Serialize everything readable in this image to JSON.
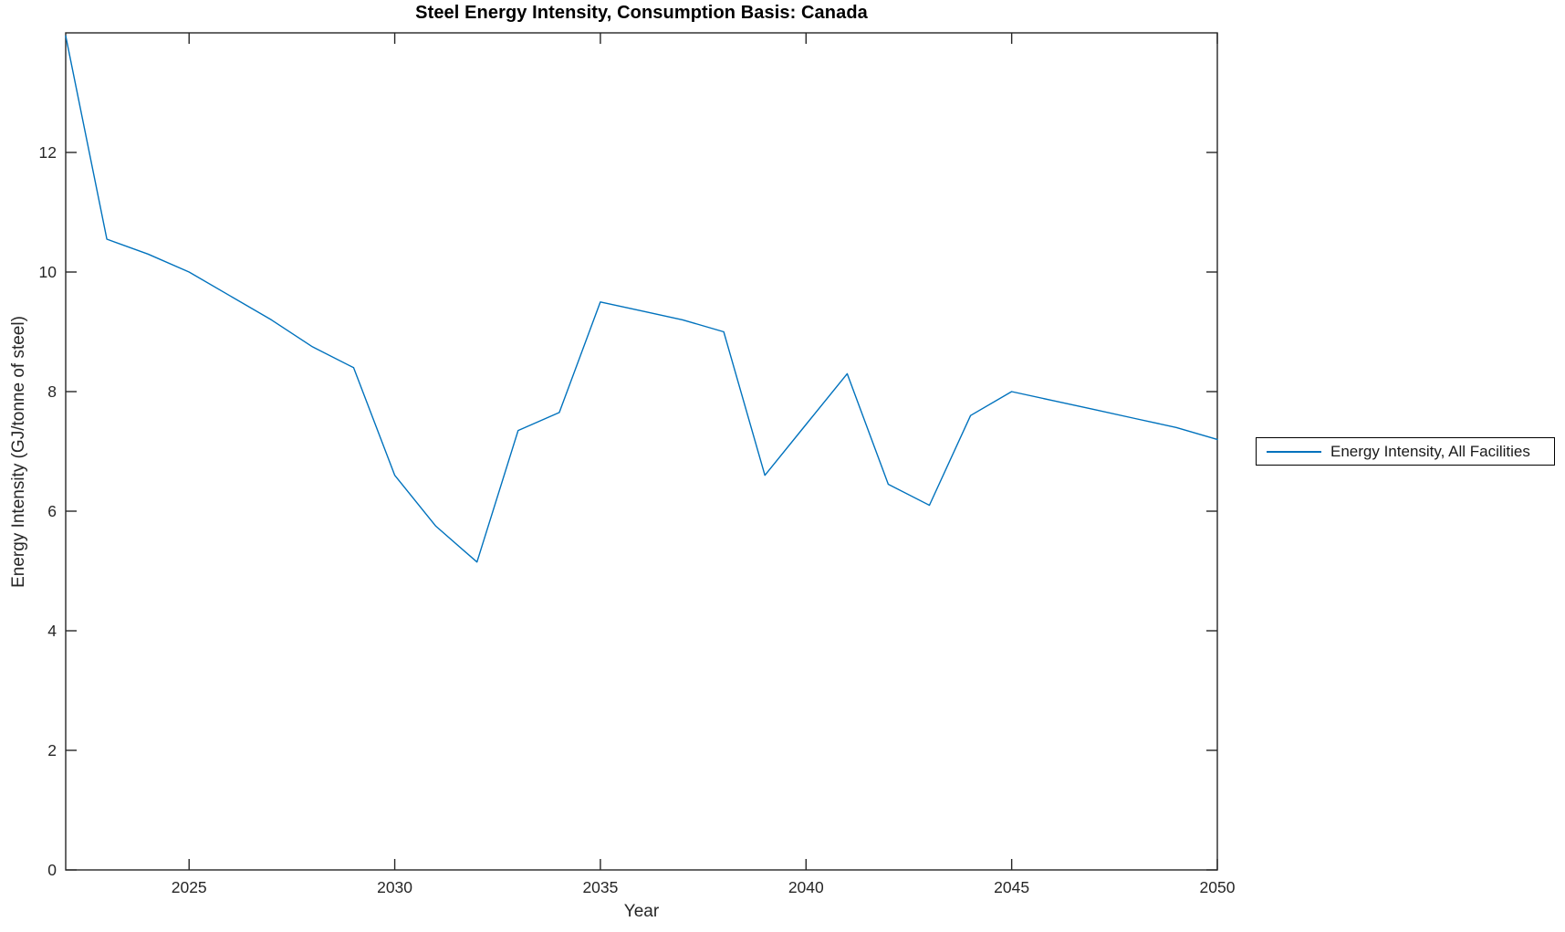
{
  "chart_data": {
    "type": "line",
    "title": "Steel Energy Intensity, Consumption Basis: Canada",
    "xlabel": "Year",
    "ylabel": "Energy Intensity (GJ/tonne of steel)",
    "xlim": [
      2022,
      2050
    ],
    "ylim": [
      0,
      14
    ],
    "x_ticks": [
      2025,
      2030,
      2035,
      2040,
      2045,
      2050
    ],
    "y_ticks": [
      0,
      2,
      4,
      6,
      8,
      10,
      12
    ],
    "grid": false,
    "box": true,
    "legend_position": "outside-right",
    "axis_color": "#262626",
    "series": [
      {
        "name": "Energy Intensity, All Facilities",
        "color": "#0072BD",
        "x": [
          2022,
          2023,
          2024,
          2025,
          2026,
          2027,
          2028,
          2029,
          2030,
          2031,
          2032,
          2033,
          2034,
          2035,
          2036,
          2037,
          2038,
          2039,
          2040,
          2041,
          2042,
          2043,
          2044,
          2045,
          2046,
          2047,
          2048,
          2049,
          2050
        ],
        "values": [
          13.95,
          10.55,
          10.3,
          10.0,
          9.6,
          9.2,
          8.75,
          8.4,
          6.6,
          5.75,
          5.15,
          7.35,
          7.65,
          9.5,
          9.35,
          9.2,
          9.0,
          6.6,
          7.45,
          8.3,
          6.45,
          6.1,
          7.6,
          8.0,
          7.85,
          7.7,
          7.55,
          7.4,
          7.2
        ]
      }
    ]
  },
  "legend": {
    "items": [
      {
        "label": "Energy Intensity, All Facilities",
        "color": "#0072BD"
      }
    ]
  }
}
